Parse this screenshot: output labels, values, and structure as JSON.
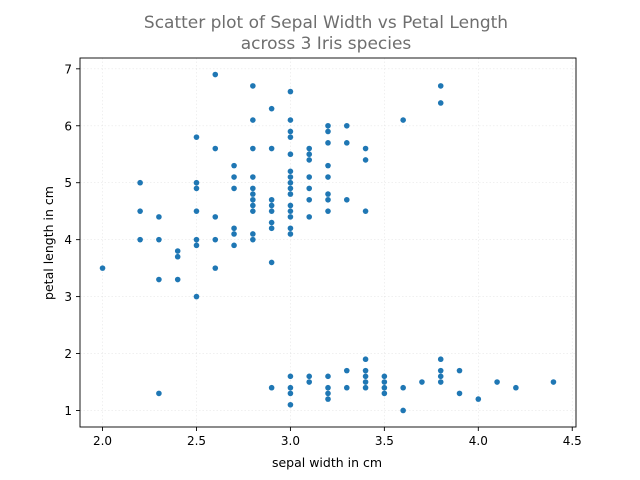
{
  "chart_data": {
    "type": "scatter",
    "title_lines": [
      "Scatter plot of Sepal Width vs Petal Length",
      "across 3 Iris species"
    ],
    "xlabel": "sepal width in cm",
    "ylabel": "petal length in cm",
    "xlim": [
      1.88,
      4.52
    ],
    "ylim": [
      0.71,
      7.19
    ],
    "xticks": [
      2.0,
      2.5,
      3.0,
      3.5,
      4.0,
      4.5
    ],
    "xtick_labels": [
      "2.0",
      "2.5",
      "3.0",
      "3.5",
      "4.0",
      "4.5"
    ],
    "yticks": [
      1,
      2,
      3,
      4,
      5,
      6,
      7
    ],
    "ytick_labels": [
      "1",
      "2",
      "3",
      "4",
      "5",
      "6",
      "7"
    ],
    "grid": true,
    "marker_color": "#1f77b4",
    "points": [
      [
        2.0,
        3.5
      ],
      [
        2.2,
        5.0
      ],
      [
        2.2,
        4.5
      ],
      [
        2.2,
        4.0
      ],
      [
        2.3,
        4.4
      ],
      [
        2.3,
        4.0
      ],
      [
        2.3,
        3.3
      ],
      [
        2.3,
        1.3
      ],
      [
        2.4,
        3.8
      ],
      [
        2.4,
        3.7
      ],
      [
        2.4,
        3.3
      ],
      [
        2.5,
        5.8
      ],
      [
        2.5,
        5.0
      ],
      [
        2.5,
        4.9
      ],
      [
        2.5,
        4.5
      ],
      [
        2.5,
        4.0
      ],
      [
        2.5,
        3.9
      ],
      [
        2.5,
        3.0
      ],
      [
        2.6,
        6.9
      ],
      [
        2.6,
        5.6
      ],
      [
        2.6,
        4.4
      ],
      [
        2.6,
        4.0
      ],
      [
        2.6,
        3.5
      ],
      [
        2.7,
        5.3
      ],
      [
        2.7,
        5.1
      ],
      [
        2.7,
        4.9
      ],
      [
        2.7,
        4.2
      ],
      [
        2.7,
        4.1
      ],
      [
        2.7,
        3.9
      ],
      [
        2.8,
        6.7
      ],
      [
        2.8,
        6.1
      ],
      [
        2.8,
        5.6
      ],
      [
        2.8,
        5.1
      ],
      [
        2.8,
        4.9
      ],
      [
        2.8,
        4.8
      ],
      [
        2.8,
        4.7
      ],
      [
        2.8,
        4.6
      ],
      [
        2.8,
        4.5
      ],
      [
        2.8,
        4.1
      ],
      [
        2.8,
        4.0
      ],
      [
        2.9,
        6.3
      ],
      [
        2.9,
        5.6
      ],
      [
        2.9,
        4.7
      ],
      [
        2.9,
        4.6
      ],
      [
        2.9,
        4.5
      ],
      [
        2.9,
        4.3
      ],
      [
        2.9,
        4.2
      ],
      [
        2.9,
        3.6
      ],
      [
        2.9,
        1.4
      ],
      [
        3.0,
        6.6
      ],
      [
        3.0,
        6.1
      ],
      [
        3.0,
        5.9
      ],
      [
        3.0,
        5.8
      ],
      [
        3.0,
        5.5
      ],
      [
        3.0,
        5.2
      ],
      [
        3.0,
        5.1
      ],
      [
        3.0,
        5.0
      ],
      [
        3.0,
        4.9
      ],
      [
        3.0,
        4.8
      ],
      [
        3.0,
        4.6
      ],
      [
        3.0,
        4.5
      ],
      [
        3.0,
        4.4
      ],
      [
        3.0,
        4.2
      ],
      [
        3.0,
        4.1
      ],
      [
        3.0,
        1.6
      ],
      [
        3.0,
        1.4
      ],
      [
        3.0,
        1.3
      ],
      [
        3.0,
        1.1
      ],
      [
        3.1,
        5.6
      ],
      [
        3.1,
        5.5
      ],
      [
        3.1,
        5.4
      ],
      [
        3.1,
        5.1
      ],
      [
        3.1,
        4.9
      ],
      [
        3.1,
        4.7
      ],
      [
        3.1,
        4.4
      ],
      [
        3.1,
        1.6
      ],
      [
        3.1,
        1.5
      ],
      [
        3.2,
        6.0
      ],
      [
        3.2,
        5.9
      ],
      [
        3.2,
        5.7
      ],
      [
        3.2,
        5.3
      ],
      [
        3.2,
        5.1
      ],
      [
        3.2,
        4.8
      ],
      [
        3.2,
        4.7
      ],
      [
        3.2,
        4.5
      ],
      [
        3.2,
        1.6
      ],
      [
        3.2,
        1.4
      ],
      [
        3.2,
        1.3
      ],
      [
        3.2,
        1.2
      ],
      [
        3.3,
        6.0
      ],
      [
        3.3,
        5.7
      ],
      [
        3.3,
        4.7
      ],
      [
        3.3,
        1.7
      ],
      [
        3.3,
        1.4
      ],
      [
        3.4,
        5.6
      ],
      [
        3.4,
        5.4
      ],
      [
        3.4,
        4.5
      ],
      [
        3.4,
        1.9
      ],
      [
        3.4,
        1.7
      ],
      [
        3.4,
        1.6
      ],
      [
        3.4,
        1.5
      ],
      [
        3.4,
        1.4
      ],
      [
        3.5,
        1.6
      ],
      [
        3.5,
        1.5
      ],
      [
        3.5,
        1.4
      ],
      [
        3.5,
        1.3
      ],
      [
        3.6,
        6.1
      ],
      [
        3.6,
        1.4
      ],
      [
        3.6,
        1.0
      ],
      [
        3.7,
        1.5
      ],
      [
        3.8,
        6.7
      ],
      [
        3.8,
        6.4
      ],
      [
        3.8,
        1.9
      ],
      [
        3.8,
        1.7
      ],
      [
        3.8,
        1.6
      ],
      [
        3.8,
        1.5
      ],
      [
        3.9,
        1.7
      ],
      [
        3.9,
        1.3
      ],
      [
        4.0,
        1.2
      ],
      [
        4.1,
        1.5
      ],
      [
        4.2,
        1.4
      ],
      [
        4.4,
        1.5
      ]
    ]
  }
}
